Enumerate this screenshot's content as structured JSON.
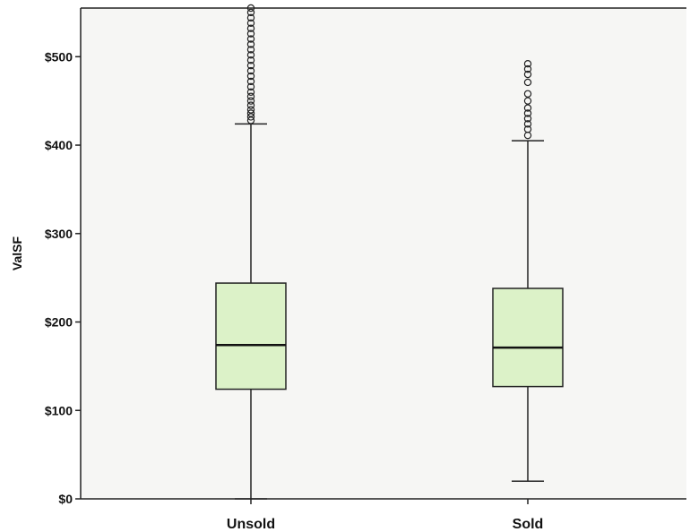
{
  "chart_data": {
    "type": "boxplot",
    "title": "",
    "xlabel": "",
    "ylabel": "ValSF",
    "ylim": [
      0,
      555
    ],
    "yticks": [
      0,
      100,
      200,
      300,
      400,
      500
    ],
    "ytick_labels": [
      "$0",
      "$100",
      "$200",
      "$300",
      "$400",
      "$500"
    ],
    "categories": [
      "Unsold",
      "Sold"
    ],
    "boxes": [
      {
        "category": "Unsold",
        "whisker_low": 0,
        "q1": 124,
        "median": 174,
        "q3": 244,
        "whisker_high": 424,
        "outliers": [
          428,
          432,
          436,
          440,
          445,
          450,
          455,
          460,
          466,
          472,
          478,
          484,
          490,
          496,
          502,
          508,
          514,
          520,
          526,
          532,
          538,
          544,
          550,
          555
        ]
      },
      {
        "category": "Sold",
        "whisker_low": 20,
        "q1": 127,
        "median": 171,
        "q3": 238,
        "whisker_high": 405,
        "outliers": [
          411,
          418,
          424,
          430,
          436,
          442,
          450,
          458,
          471,
          480,
          486,
          492
        ]
      }
    ],
    "box_color": "#dcf2c8",
    "background": "#f6f6f4",
    "grid": false
  }
}
